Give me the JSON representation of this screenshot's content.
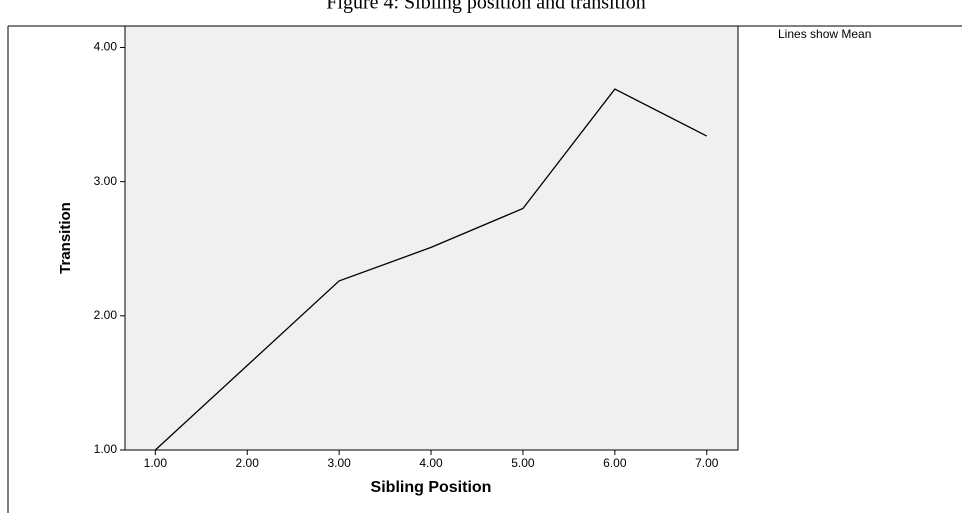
{
  "chart_data": {
    "type": "line",
    "title": "Figure 4: Sibling position and transition",
    "annotation": "Lines show Mean",
    "x_label": "Sibling Position",
    "y_label": "Transition",
    "x": [
      1,
      2,
      3,
      4,
      5,
      6,
      7
    ],
    "series": [
      {
        "name": "Mean",
        "color": "#000000",
        "values": [
          1.0,
          1.63,
          2.26,
          2.51,
          2.8,
          3.69,
          3.34
        ]
      }
    ],
    "xlim": [
      0.67,
      7.34
    ],
    "ylim": [
      1.0,
      4.16
    ],
    "xticks": [
      {
        "value": 1,
        "label": "1.00"
      },
      {
        "value": 2,
        "label": "2.00"
      },
      {
        "value": 3,
        "label": "3.00"
      },
      {
        "value": 4,
        "label": "4.00"
      },
      {
        "value": 5,
        "label": "5.00"
      },
      {
        "value": 6,
        "label": "6.00"
      },
      {
        "value": 7,
        "label": "7.00"
      }
    ],
    "yticks": [
      {
        "value": 1,
        "label": "1.00"
      },
      {
        "value": 2,
        "label": "2.00"
      },
      {
        "value": 3,
        "label": "3.00"
      },
      {
        "value": 4,
        "label": "4.00"
      }
    ],
    "grid": false
  }
}
